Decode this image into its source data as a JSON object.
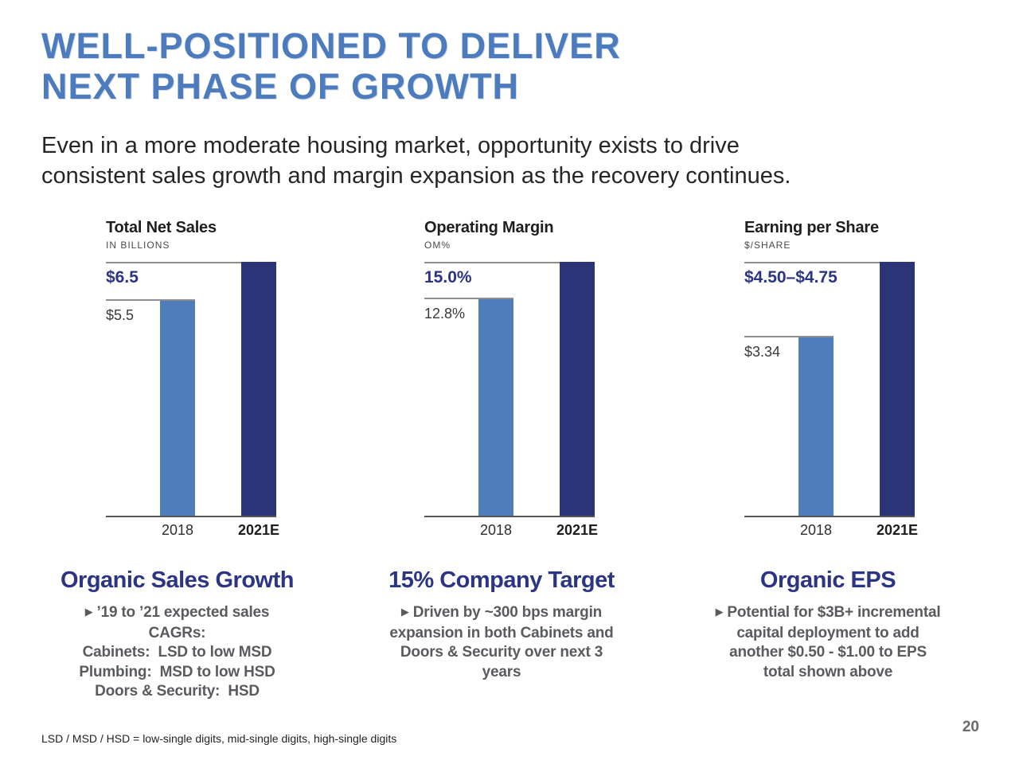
{
  "title": {
    "line1": "WELL-POSITIONED TO DELIVER",
    "line2": "NEXT PHASE OF GROWTH"
  },
  "subtitle": {
    "line1": "Even in a more moderate housing market, opportunity exists to drive",
    "line2": "consistent sales growth and margin expansion as the recovery continues."
  },
  "chart_data": {
    "type": "bar",
    "legend_position": "none",
    "grid": false,
    "charts": [
      {
        "title": "Total Net Sales",
        "unit": "IN BILLIONS",
        "categories": [
          "2018",
          "2021E"
        ],
        "values": [
          5.5,
          6.5
        ],
        "value_labels": [
          "$5.5",
          "$6.5"
        ]
      },
      {
        "title": "Operating Margin",
        "unit": "OM%",
        "categories": [
          "2018",
          "2021E"
        ],
        "values": [
          12.8,
          15.0
        ],
        "value_labels": [
          "12.8%",
          "15.0%"
        ]
      },
      {
        "title": "Earning per Share",
        "unit": "$/SHARE",
        "categories": [
          "2018",
          "2021E"
        ],
        "values": [
          3.34,
          4.75
        ],
        "value_2021_range": [
          4.5,
          4.75
        ],
        "value_labels": [
          "$3.34",
          "$4.50–$4.75"
        ]
      }
    ]
  },
  "sections": [
    {
      "heading": "Organic Sales Growth",
      "bullet": "▶",
      "lines": [
        "’19 to ’21 expected sales",
        "CAGRs:",
        "Cabinets:  LSD to low MSD",
        "Plumbing:  MSD to low HSD",
        "Doors & Security:  HSD"
      ]
    },
    {
      "heading": "15% Company Target",
      "bullet": "▶",
      "lines": [
        "Driven by ~300 bps margin",
        "expansion in both Cabinets and",
        "Doors & Security over next 3",
        "years"
      ]
    },
    {
      "heading": "Organic EPS",
      "bullet": "▶",
      "lines": [
        "Potential for $3B+ incremental",
        "capital deployment to add",
        "another $0.50 - $1.00 to EPS",
        "total shown above"
      ]
    }
  ],
  "footer": {
    "note": "LSD / MSD / HSD = low-single digits, mid-single digits, high-single digits",
    "page_number": "20"
  },
  "colors": {
    "title_blue": "#4C7CBE",
    "navy_accent": "#2B3583",
    "bar_2018_light_blue": "#4F7DBC",
    "bar_2021_dark_navy": "#2A3477",
    "ref_line_gray": "#8E8E8E",
    "baseline_gray": "#55565A",
    "body_text_gray": "#595B5E"
  }
}
